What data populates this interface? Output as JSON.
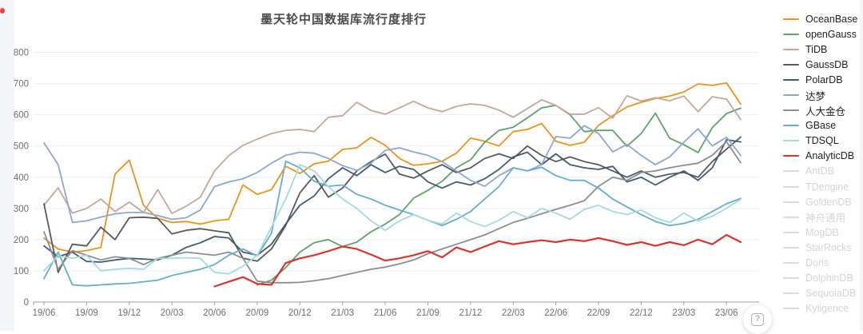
{
  "chart_data": {
    "type": "line",
    "title": "墨天轮中国数据库流行度排行",
    "xlabel": "",
    "ylabel": "",
    "ylim": [
      0,
      800
    ],
    "y_ticks": [
      0,
      100,
      200,
      300,
      400,
      500,
      600,
      700,
      800
    ],
    "grid": true,
    "legend_position": "right",
    "x_tick_every": 3,
    "x": [
      "19/06",
      "19/07",
      "19/08",
      "19/09",
      "19/10",
      "19/11",
      "19/12",
      "20/01",
      "20/02",
      "20/03",
      "20/04",
      "20/05",
      "20/06",
      "20/07",
      "20/08",
      "20/09",
      "20/10",
      "20/11",
      "20/12",
      "21/01",
      "21/02",
      "21/03",
      "21/04",
      "21/05",
      "21/06",
      "21/07",
      "21/08",
      "21/09",
      "21/10",
      "21/11",
      "21/12",
      "22/01",
      "22/02",
      "22/03",
      "22/04",
      "22/05",
      "22/06",
      "22/07",
      "22/08",
      "22/09",
      "22/10",
      "22/11",
      "22/12",
      "23/01",
      "23/02",
      "23/03",
      "23/04",
      "23/05",
      "23/06",
      "23/07"
    ],
    "series": [
      {
        "name": "OceanBase",
        "color": "#E8941E",
        "enabled": true,
        "values": [
          205,
          170,
          160,
          165,
          175,
          410,
          455,
          310,
          268,
          255,
          258,
          250,
          260,
          265,
          375,
          345,
          360,
          435,
          412,
          443,
          451,
          489,
          494,
          528,
          502,
          460,
          438,
          443,
          451,
          477,
          525,
          515,
          500,
          546,
          553,
          572,
          515,
          502,
          512,
          566,
          597,
          625,
          640,
          652,
          660,
          673,
          699,
          694,
          702,
          634
        ]
      },
      {
        "name": "openGauss",
        "color": "#61A26B",
        "enabled": true,
        "values": [
          null,
          null,
          null,
          null,
          null,
          null,
          null,
          null,
          null,
          null,
          null,
          null,
          null,
          null,
          null,
          55,
          70,
          110,
          160,
          190,
          200,
          178,
          192,
          225,
          250,
          280,
          333,
          358,
          387,
          430,
          456,
          512,
          550,
          560,
          590,
          622,
          630,
          600,
          546,
          550,
          550,
          499,
          540,
          605,
          525,
          504,
          479,
          559,
          604,
          621
        ]
      },
      {
        "name": "TiDB",
        "color": "#C7A69A",
        "enabled": true,
        "values": [
          310,
          366,
          285,
          300,
          330,
          290,
          320,
          287,
          360,
          284,
          307,
          336,
          420,
          469,
          502,
          522,
          540,
          550,
          553,
          546,
          592,
          597,
          640,
          614,
          602,
          622,
          643,
          622,
          610,
          627,
          635,
          630,
          615,
          592,
          620,
          648,
          630,
          602,
          602,
          623,
          589,
          661,
          644,
          655,
          645,
          660,
          610,
          658,
          650,
          585
        ]
      },
      {
        "name": "GaussDB",
        "color": "#57595D",
        "enabled": true,
        "values": [
          315,
          95,
          185,
          180,
          240,
          200,
          270,
          272,
          268,
          218,
          230,
          235,
          228,
          222,
          140,
          131,
          170,
          245,
          350,
          405,
          336,
          365,
          420,
          450,
          474,
          410,
          397,
          420,
          440,
          415,
          430,
          460,
          475,
          460,
          500,
          470,
          450,
          465,
          450,
          440,
          420,
          400,
          420,
          400,
          410,
          415,
          400,
          450,
          490,
          529
        ]
      },
      {
        "name": "PolarDB",
        "color": "#435B71",
        "enabled": true,
        "values": [
          180,
          145,
          160,
          130,
          128,
          135,
          140,
          138,
          135,
          150,
          175,
          190,
          210,
          205,
          160,
          150,
          185,
          250,
          310,
          340,
          395,
          430,
          405,
          440,
          415,
          435,
          425,
          385,
          365,
          385,
          375,
          395,
          425,
          465,
          480,
          440,
          475,
          440,
          430,
          425,
          435,
          385,
          400,
          375,
          400,
          420,
          390,
          430,
          520,
          513
        ]
      },
      {
        "name": "达梦",
        "color": "#8CA8CE",
        "enabled": true,
        "values": [
          510,
          440,
          255,
          260,
          272,
          283,
          287,
          287,
          277,
          265,
          270,
          295,
          370,
          385,
          395,
          415,
          445,
          470,
          480,
          477,
          460,
          437,
          422,
          445,
          486,
          494,
          481,
          470,
          450,
          420,
          390,
          371,
          405,
          430,
          420,
          440,
          530,
          525,
          565,
          540,
          481,
          505,
          470,
          440,
          465,
          512,
          555,
          500,
          528,
          470
        ]
      },
      {
        "name": "人大金仓",
        "color": "#8A8E92",
        "enabled": true,
        "values": [
          225,
          105,
          165,
          150,
          135,
          145,
          140,
          120,
          140,
          150,
          160,
          155,
          150,
          160,
          140,
          67,
          62,
          62,
          63,
          68,
          75,
          85,
          95,
          105,
          112,
          122,
          135,
          155,
          170,
          185,
          200,
          215,
          235,
          255,
          268,
          283,
          297,
          310,
          325,
          371,
          400,
          390,
          415,
          420,
          430,
          438,
          445,
          470,
          514,
          446
        ]
      },
      {
        "name": "GBase",
        "color": "#66AECB",
        "enabled": true,
        "values": [
          75,
          160,
          55,
          52,
          55,
          58,
          60,
          65,
          70,
          85,
          95,
          105,
          120,
          150,
          170,
          148,
          220,
          451,
          430,
          387,
          371,
          375,
          345,
          330,
          310,
          295,
          280,
          262,
          245,
          265,
          290,
          330,
          370,
          430,
          420,
          432,
          405,
          390,
          390,
          365,
          330,
          305,
          280,
          258,
          245,
          252,
          265,
          290,
          315,
          332
        ]
      },
      {
        "name": "TDSQL",
        "color": "#A7D9DF",
        "enabled": true,
        "values": [
          100,
          148,
          140,
          150,
          100,
          105,
          108,
          105,
          140,
          140,
          142,
          140,
          95,
          90,
          115,
          150,
          240,
          330,
          440,
          420,
          370,
          330,
          300,
          260,
          230,
          260,
          280,
          262,
          250,
          285,
          258,
          242,
          262,
          290,
          270,
          300,
          285,
          265,
          297,
          310,
          290,
          280,
          295,
          270,
          255,
          285,
          260,
          275,
          300,
          329
        ]
      },
      {
        "name": "AnalyticDB",
        "color": "#D7342C",
        "enabled": true,
        "values": [
          null,
          null,
          null,
          null,
          null,
          null,
          null,
          null,
          null,
          null,
          null,
          null,
          50,
          65,
          80,
          58,
          55,
          125,
          140,
          150,
          163,
          178,
          170,
          152,
          133,
          140,
          150,
          163,
          143,
          175,
          160,
          178,
          195,
          185,
          192,
          198,
          192,
          200,
          195,
          205,
          195,
          183,
          192,
          180,
          192,
          182,
          200,
          185,
          215,
          192
        ]
      },
      {
        "name": "AntDB",
        "color": "#d9dcde",
        "enabled": false,
        "values": []
      },
      {
        "name": "TDengine",
        "color": "#d9dcde",
        "enabled": false,
        "values": []
      },
      {
        "name": "GoldenDB",
        "color": "#d9dcde",
        "enabled": false,
        "values": []
      },
      {
        "name": "神舟通用",
        "color": "#d9dcde",
        "enabled": false,
        "values": []
      },
      {
        "name": "MogDB",
        "color": "#d9dcde",
        "enabled": false,
        "values": []
      },
      {
        "name": "StarRocks",
        "color": "#d9dcde",
        "enabled": false,
        "values": []
      },
      {
        "name": "Doris",
        "color": "#d9dcde",
        "enabled": false,
        "values": []
      },
      {
        "name": "DolphinDB",
        "color": "#d9dcde",
        "enabled": false,
        "values": []
      },
      {
        "name": "SequoiaDB",
        "color": "#d9dcde",
        "enabled": false,
        "values": []
      },
      {
        "name": "Kyligence",
        "color": "#d9dcde",
        "enabled": false,
        "values": []
      }
    ],
    "axis_color": "#9aa0a6",
    "grid_color": "#e7eef6",
    "tick_label_color": "#6e6e6e"
  },
  "help_button": {
    "label": "?"
  }
}
